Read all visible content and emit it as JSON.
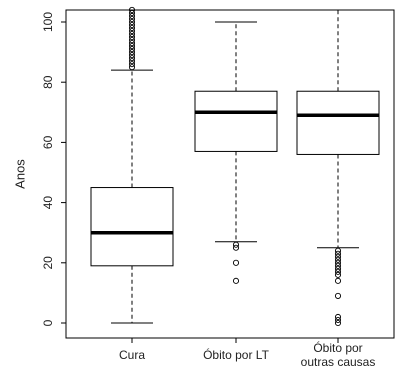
{
  "chart_data": {
    "type": "boxplot",
    "title": "",
    "xlabel": "",
    "ylabel": "Anos",
    "ylim": [
      0,
      105
    ],
    "yticks": [
      "0",
      "20",
      "40",
      "60",
      "80",
      "100"
    ],
    "ytick_values": [
      0,
      20,
      40,
      60,
      80,
      100
    ],
    "categories": [
      "Cura",
      "Óbito por LT",
      "Óbito por outras causas"
    ],
    "category_lines": [
      [
        "Cura"
      ],
      [
        "Óbito por LT"
      ],
      [
        "Óbito por",
        "outras causas"
      ]
    ],
    "boxes": [
      {
        "whisker_low": 0,
        "q1": 19,
        "median": 30,
        "q3": 45,
        "whisker_high": 84,
        "outliers": [
          85,
          86,
          87,
          88,
          89,
          90,
          91,
          92,
          93,
          94,
          95,
          96,
          97,
          98,
          99,
          100,
          101,
          102,
          103,
          104
        ]
      },
      {
        "whisker_low": 27,
        "q1": 57,
        "median": 70,
        "q3": 77,
        "whisker_high": 100,
        "outliers": [
          14,
          20,
          25,
          26
        ]
      },
      {
        "whisker_low": 25,
        "q1": 56,
        "median": 69,
        "q3": 77,
        "whisker_high": 104,
        "outliers": [
          0,
          1,
          2,
          9,
          14,
          16,
          17,
          18,
          19,
          20,
          21,
          22,
          23,
          24
        ]
      }
    ],
    "grid": false,
    "legend": "none"
  }
}
